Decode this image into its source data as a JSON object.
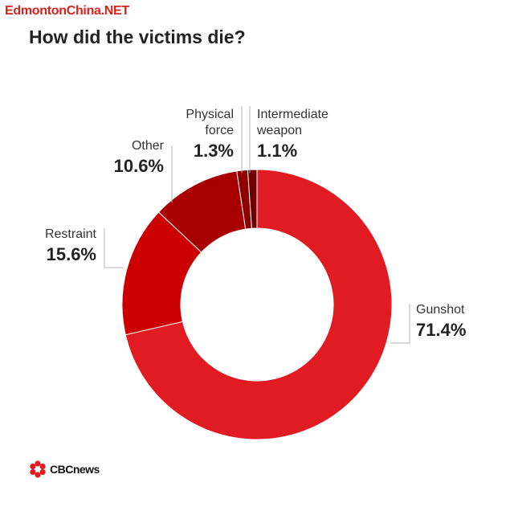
{
  "watermark": "EdmontonChina.NET",
  "chart_data": {
    "type": "pie",
    "title": "How did the victims die?",
    "donut": true,
    "categories": [
      "Gunshot",
      "Restraint",
      "Other",
      "Physical force",
      "Intermediate weapon"
    ],
    "label_lines": [
      [
        "Gunshot"
      ],
      [
        "Restraint"
      ],
      [
        "Other"
      ],
      [
        "Physical",
        "force"
      ],
      [
        "Intermediate",
        "weapon"
      ]
    ],
    "values": [
      71.4,
      15.6,
      10.6,
      1.3,
      1.1
    ],
    "value_labels": [
      "71.4%",
      "15.6%",
      "10.6%",
      "1.3%",
      "1.1%"
    ],
    "colors": [
      "#e01b22",
      "#cc0000",
      "#a80000",
      "#8e0000",
      "#6e0000"
    ]
  },
  "footer": {
    "brand": "CBCnews",
    "brand_text": "CBCnews"
  }
}
